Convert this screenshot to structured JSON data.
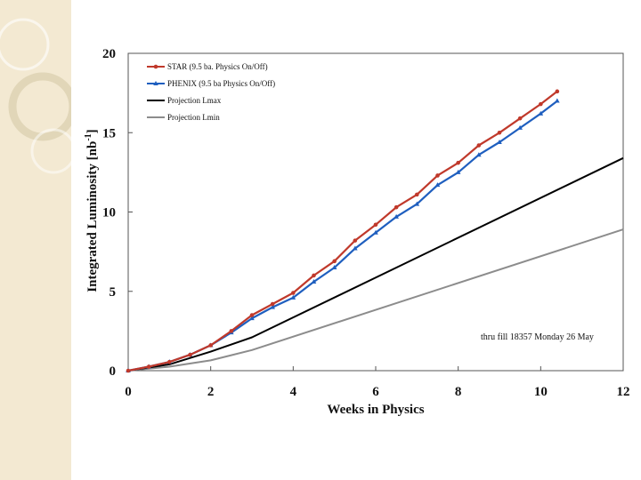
{
  "chart_data": {
    "type": "line",
    "xlabel": "Weeks in Physics",
    "ylabel": "Integrated Luminosity [nb",
    "ylabel_sup": "-1",
    "ylabel_close": "]",
    "xlim": [
      0,
      12
    ],
    "ylim": [
      0,
      20
    ],
    "xticks": [
      "0",
      "2",
      "4",
      "6",
      "8",
      "10",
      "12"
    ],
    "yticks": [
      "0",
      "5",
      "10",
      "15",
      "20"
    ],
    "grid": false,
    "legend_position": "top-left",
    "annotation": "thru fill 18357 Monday 26 May",
    "series": [
      {
        "name": "STAR (9.5 ba. Physics On/Off)",
        "color": "#c0392b",
        "marker": "circle",
        "x": [
          0,
          0.5,
          1,
          1.5,
          2,
          2.5,
          3,
          3.5,
          4,
          4.5,
          5,
          5.5,
          6,
          6.5,
          7,
          7.5,
          8,
          8.5,
          9,
          9.5,
          10,
          10.4
        ],
        "y": [
          0,
          0.25,
          0.55,
          1.0,
          1.6,
          2.5,
          3.5,
          4.2,
          4.9,
          6.0,
          6.9,
          8.2,
          9.2,
          10.3,
          11.1,
          12.3,
          13.1,
          14.2,
          15.0,
          15.9,
          16.8,
          17.6
        ]
      },
      {
        "name": "PHENIX (9.5 ba Physics On/Off)",
        "color": "#1f5fbf",
        "marker": "triangle",
        "x": [
          0,
          0.5,
          1,
          1.5,
          2,
          2.5,
          3,
          3.5,
          4,
          4.5,
          5,
          5.5,
          6,
          6.5,
          7,
          7.5,
          8,
          8.5,
          9,
          9.5,
          10,
          10.4
        ],
        "y": [
          0,
          0.25,
          0.55,
          1.0,
          1.6,
          2.4,
          3.3,
          4.0,
          4.6,
          5.6,
          6.5,
          7.7,
          8.7,
          9.7,
          10.5,
          11.7,
          12.5,
          13.6,
          14.4,
          15.3,
          16.2,
          17.0
        ]
      },
      {
        "name": "Projection Lmax",
        "color": "#000000",
        "marker": "none",
        "x": [
          0,
          1,
          2,
          3,
          12
        ],
        "y": [
          0,
          0.4,
          1.2,
          2.1,
          13.4
        ]
      },
      {
        "name": "Projection Lmin",
        "color": "#8c8c8c",
        "marker": "none",
        "x": [
          0,
          1,
          2,
          3,
          12
        ],
        "y": [
          0,
          0.25,
          0.65,
          1.3,
          8.9
        ]
      }
    ]
  }
}
